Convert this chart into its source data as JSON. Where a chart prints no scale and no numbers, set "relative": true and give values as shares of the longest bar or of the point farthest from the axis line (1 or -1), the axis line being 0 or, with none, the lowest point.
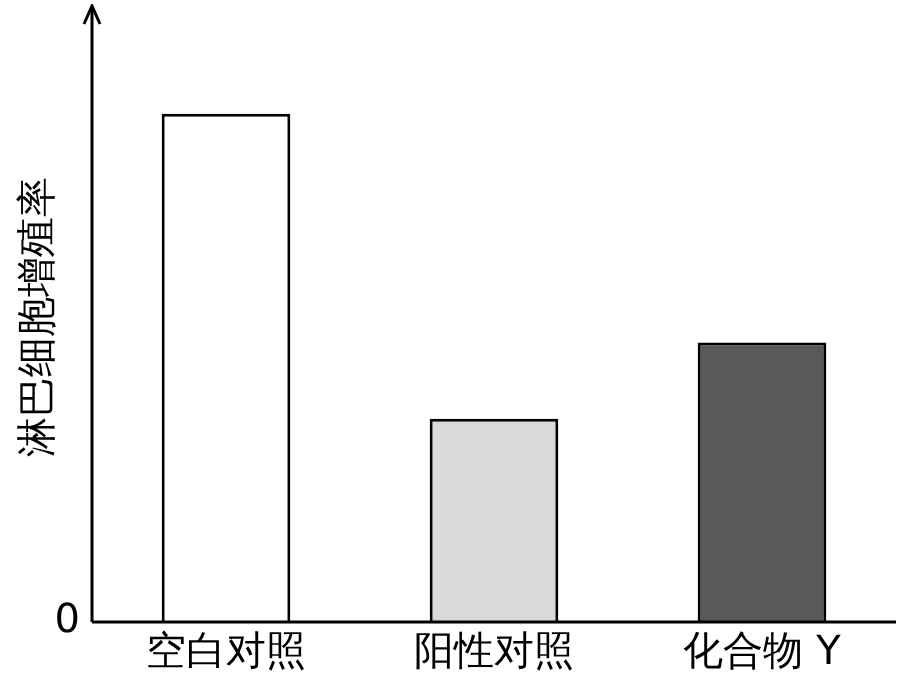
{
  "chart_data": {
    "type": "bar",
    "ylabel": "淋巴细胞增殖率",
    "categories": [
      "空白对照",
      "阳性对照",
      "化合物 Y"
    ],
    "values": [
      1,
      0.4,
      0.55
    ],
    "colors": [
      "#ffffff",
      "#d9d9d9",
      "#595959"
    ],
    "relative": true,
    "grid": false,
    "legend": false,
    "annotations": [
      "0"
    ]
  }
}
